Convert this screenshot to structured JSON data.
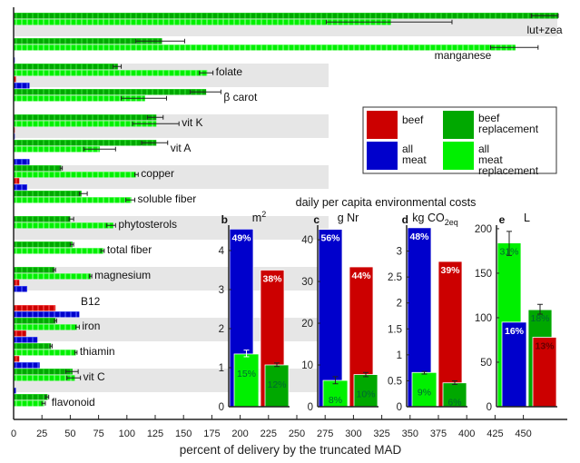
{
  "colors": {
    "beef": "#cc0000",
    "all_meat": "#0000cc",
    "beef_replacement": "#00a800",
    "all_meat_replacement": "#00f000",
    "band": "#e6e6e6"
  },
  "chart_data": [
    {
      "type": "bar",
      "orientation": "horizontal",
      "xlabel": "percent of delivery by the truncated MAD",
      "xlim": [
        0,
        490
      ],
      "xticks": [
        "0",
        "25",
        "50",
        "75",
        "100",
        "125",
        "150",
        "175",
        "200",
        "225",
        "250",
        "275",
        "300",
        "325",
        "350",
        "375",
        "400",
        "425",
        "450"
      ],
      "grid": false,
      "legend": "right",
      "categories": [
        "lut+zea",
        "manganese",
        "folate",
        "β carot",
        "vit K",
        "vit A",
        "copper",
        "soluble fiber",
        "phytosterols",
        "total fiber",
        "magnesium",
        "B12",
        "iron",
        "thiamin",
        "vit C",
        "flavonoid"
      ],
      "series": [
        {
          "name": "beef replacement",
          "key": "beef_replacement",
          "values": [
            481,
            131,
            92,
            170,
            126,
            126,
            42,
            60,
            50,
            52,
            36,
            0,
            37,
            33,
            52,
            30
          ],
          "err": [
            [
              457,
              481
            ],
            [
              108,
              151
            ],
            [
              88,
              95
            ],
            [
              156,
              183
            ],
            [
              118,
              132
            ],
            [
              113,
              136
            ],
            [
              41,
              43
            ],
            [
              58,
              65
            ],
            [
              49,
              53
            ],
            [
              50,
              53
            ],
            [
              35,
              37
            ],
            null,
            [
              36,
              38
            ],
            [
              32,
              34
            ],
            [
              46,
              57
            ],
            [
              28,
              31
            ]
          ]
        },
        {
          "name": "all meat replacement",
          "key": "all_meat_replacement",
          "values": [
            333,
            443,
            171,
            116,
            126,
            76,
            108,
            104,
            88,
            79,
            68,
            0,
            56,
            55,
            54,
            27
          ],
          "err": [
            [
              276,
              387
            ],
            [
              421,
              463
            ],
            [
              164,
              176
            ],
            [
              95,
              135
            ],
            [
              105,
              146
            ],
            [
              62,
              90
            ],
            [
              107,
              110
            ],
            [
              99,
              107
            ],
            [
              82,
              90
            ],
            [
              77,
              80
            ],
            [
              67,
              69
            ],
            null,
            [
              55,
              58
            ],
            [
              54,
              56
            ],
            [
              47,
              59
            ],
            [
              25,
              28
            ]
          ]
        },
        {
          "name": "beef",
          "key": "beef",
          "values": [
            0,
            0,
            2,
            0,
            1,
            0,
            5,
            0,
            0,
            0,
            5,
            37,
            11,
            5,
            0,
            0
          ]
        },
        {
          "name": "all meat",
          "key": "all_meat",
          "values": [
            0,
            1,
            14,
            0,
            1,
            14,
            12,
            0,
            0,
            0,
            12,
            58,
            21,
            23,
            2,
            0
          ]
        }
      ]
    },
    {
      "type": "bar",
      "panel": "b",
      "unit": "m",
      "unit_sup": "2",
      "unit_sub": "",
      "ylim": [
        0,
        4.65
      ],
      "yticks": [
        "0",
        "1",
        "2",
        "3",
        "4"
      ],
      "ytick_values": [
        0,
        1,
        2,
        3,
        4
      ],
      "bars": [
        {
          "series": "all meat",
          "key": "all_meat",
          "value": 4.55,
          "label": "49%"
        },
        {
          "series": "all meat replacement",
          "key": "all_meat_replacement",
          "value": 1.35,
          "err": [
            1.28,
            1.45
          ],
          "label": "15%"
        },
        {
          "series": "beef",
          "key": "beef",
          "value": 3.5,
          "label": "38%"
        },
        {
          "series": "beef replacement",
          "key": "beef_replacement",
          "value": 1.07,
          "err": [
            1.03,
            1.12
          ],
          "label": "12%"
        }
      ]
    },
    {
      "type": "bar",
      "panel": "c",
      "unit": "g Nr",
      "unit_sup": "",
      "unit_sub": "",
      "ylim": [
        0,
        43.5
      ],
      "yticks": [
        "0",
        "10",
        "20",
        "30",
        "40"
      ],
      "ytick_values": [
        0,
        10,
        20,
        30,
        40
      ],
      "bars": [
        {
          "series": "all meat",
          "key": "all_meat",
          "value": 42.5,
          "label": "56%"
        },
        {
          "series": "all meat replacement",
          "key": "all_meat_replacement",
          "value": 6.3,
          "err": [
            5.5,
            7.2
          ],
          "label": "8%"
        },
        {
          "series": "beef",
          "key": "beef",
          "value": 33.5,
          "label": "44%"
        },
        {
          "series": "beef replacement",
          "key": "beef_replacement",
          "value": 7.7,
          "err": [
            7.2,
            8.2
          ],
          "label": "10%"
        }
      ]
    },
    {
      "type": "bar",
      "panel": "d",
      "unit": "kg CO",
      "unit_sup": "",
      "unit_sub": "2eq",
      "ylim": [
        0,
        3.5
      ],
      "yticks": [
        "0",
        "0.5",
        "1",
        "1.5",
        "2",
        "2.5",
        "3"
      ],
      "ytick_values": [
        0,
        0.5,
        1,
        1.5,
        2,
        2.5,
        3
      ],
      "bars": [
        {
          "series": "all meat",
          "key": "all_meat",
          "value": 3.45,
          "label": "48%"
        },
        {
          "series": "all meat replacement",
          "key": "all_meat_replacement",
          "value": 0.66,
          "err": [
            0.63,
            0.68
          ],
          "label": "9%"
        },
        {
          "series": "beef",
          "key": "beef",
          "value": 2.8,
          "label": "39%"
        },
        {
          "series": "beef replacement",
          "key": "beef_replacement",
          "value": 0.46,
          "err": [
            0.43,
            0.5
          ],
          "label": "6%"
        }
      ]
    },
    {
      "type": "bar",
      "panel": "e",
      "unit": "L",
      "unit_sup": "",
      "unit_sub": "",
      "ylim": [
        0,
        204
      ],
      "yticks": [
        "0",
        "50",
        "100",
        "150",
        "200"
      ],
      "ytick_values": [
        0,
        50,
        100,
        150,
        200
      ],
      "bars": [
        {
          "series": "all meat replacement",
          "key": "all_meat_replacement",
          "value": 184,
          "err": [
            170,
            197
          ],
          "label": "31%"
        },
        {
          "series": "all meat",
          "key": "all_meat",
          "value": 95,
          "label": "16%"
        },
        {
          "series": "beef replacement",
          "key": "beef_replacement",
          "value": 109,
          "err": [
            104,
            115
          ],
          "label": "18%"
        },
        {
          "series": "beef",
          "key": "beef",
          "value": 78,
          "label": "13%"
        }
      ]
    }
  ],
  "panels_title": "daily per capita environmental costs",
  "legend": [
    {
      "key": "beef",
      "label": "beef"
    },
    {
      "key": "beef_replacement",
      "label": "beef replacement"
    },
    {
      "key": "all_meat",
      "label": "all meat"
    },
    {
      "key": "all_meat_replacement",
      "label": "all meat replacement"
    }
  ]
}
